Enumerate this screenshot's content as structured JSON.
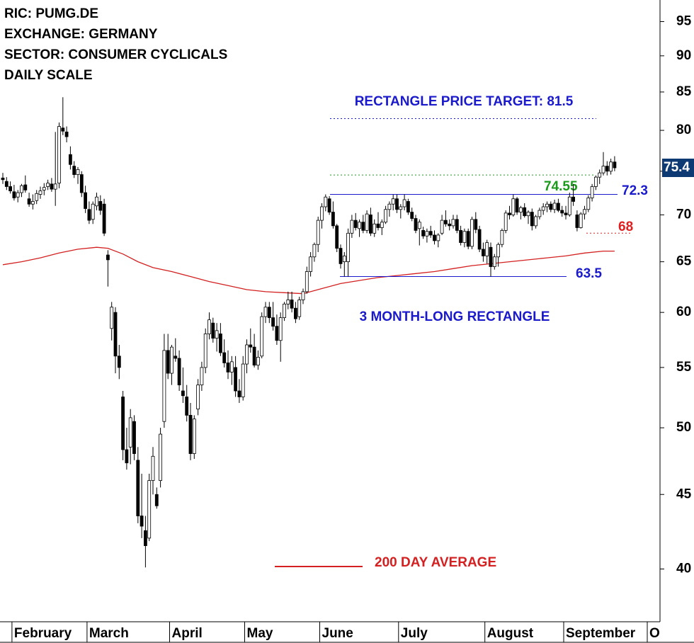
{
  "chart_data": {
    "type": "candlestick",
    "header": [
      "RIC: PUMG.DE",
      "EXCHANGE: GERMANY",
      "SECTOR: CONSUMER CYCLICALS",
      "DAILY SCALE"
    ],
    "log_scale": true,
    "ylim": [
      36.8,
      98.3
    ],
    "yticks": [
      40,
      45,
      50,
      55,
      60,
      65,
      70,
      75,
      80,
      85,
      90,
      95
    ],
    "categories": [
      null,
      null,
      null,
      "February",
      null,
      null,
      null,
      null,
      null,
      null,
      null,
      null,
      null,
      null,
      null,
      null,
      null,
      null,
      null,
      null,
      null,
      null,
      null,
      "March",
      null,
      null,
      null,
      null,
      null,
      null,
      null,
      null,
      null,
      null,
      null,
      null,
      null,
      null,
      null,
      null,
      null,
      null,
      null,
      null,
      null,
      "April",
      null,
      null,
      null,
      null,
      null,
      null,
      null,
      null,
      null,
      null,
      null,
      null,
      null,
      null,
      null,
      null,
      null,
      null,
      null,
      "May",
      null,
      null,
      null,
      null,
      null,
      null,
      null,
      null,
      null,
      null,
      null,
      null,
      null,
      null,
      null,
      null,
      null,
      null,
      null,
      "June",
      null,
      null,
      null,
      null,
      null,
      null,
      null,
      null,
      null,
      null,
      null,
      null,
      null,
      null,
      null,
      null,
      null,
      null,
      null,
      null,
      "July",
      null,
      null,
      null,
      null,
      null,
      null,
      null,
      null,
      null,
      null,
      null,
      null,
      null,
      null,
      null,
      null,
      null,
      null,
      null,
      null,
      null,
      null,
      "August",
      null,
      null,
      null,
      null,
      null,
      null,
      null,
      null,
      null,
      null,
      null,
      null,
      null,
      null,
      null,
      null,
      null,
      null,
      null,
      null,
      "September",
      null,
      null,
      null,
      null,
      null,
      null,
      null,
      null,
      null,
      null,
      null,
      null,
      null
    ],
    "next_month_label": "O",
    "up_color": "#ffffff",
    "down_color": "#000000",
    "ohlc": [
      [
        74.2,
        74.8,
        73.5,
        74.0
      ],
      [
        73.8,
        74.3,
        72.8,
        73.2
      ],
      [
        73.2,
        73.8,
        72.4,
        72.7
      ],
      [
        72.6,
        73.4,
        71.6,
        71.9
      ],
      [
        72,
        72.8,
        71.4,
        72.5
      ],
      [
        72.5,
        73.5,
        72,
        73.3
      ],
      [
        73.4,
        74.5,
        72.5,
        72.8
      ],
      [
        71.8,
        72.5,
        70.9,
        71.2
      ],
      [
        71.2,
        72.3,
        70.6,
        71.5
      ],
      [
        71.6,
        72.8,
        71.2,
        72.4
      ],
      [
        72.3,
        73.2,
        71.8,
        72.7
      ],
      [
        72.8,
        73.6,
        72.2,
        73.1
      ],
      [
        73.2,
        74,
        72.8,
        73.6
      ],
      [
        73.5,
        74.2,
        72.6,
        72.9
      ],
      [
        72.9,
        79.8,
        71,
        73.5
      ],
      [
        73.6,
        81,
        73,
        80.5
      ],
      [
        80.3,
        84.3,
        79.4,
        79.9
      ],
      [
        79.8,
        80.5,
        78.5,
        79.2
      ],
      [
        77,
        78,
        75.2,
        75.8
      ],
      [
        75.6,
        76.2,
        74.2,
        74.6
      ],
      [
        74.6,
        75.5,
        73.5,
        75.2
      ],
      [
        74.6,
        75,
        72,
        72.5
      ],
      [
        72.5,
        73.3,
        70.2,
        70.7
      ],
      [
        70.6,
        71.5,
        69,
        69.4
      ],
      [
        69.5,
        71.5,
        69,
        71.2
      ],
      [
        71,
        72.5,
        70.5,
        72
      ],
      [
        71.5,
        72.2,
        70,
        70.5
      ],
      [
        71.2,
        71.8,
        67.7,
        68
      ],
      [
        65.7,
        66.2,
        62.5,
        65.2
      ],
      [
        58.5,
        61,
        57.4,
        60.5
      ],
      [
        60,
        60.5,
        54.5,
        56
      ],
      [
        56,
        57,
        54,
        55
      ],
      [
        52.5,
        53,
        47.5,
        48.3
      ],
      [
        48.3,
        50,
        46.8,
        47.3
      ],
      [
        48.5,
        51.5,
        47.2,
        50.8
      ],
      [
        50.5,
        51,
        47.5,
        48
      ],
      [
        47.5,
        48.5,
        43,
        43.5
      ],
      [
        43.5,
        46.5,
        42,
        42.8
      ],
      [
        42.5,
        43.5,
        40.1,
        41.5
      ],
      [
        42,
        46.5,
        41.8,
        46
      ],
      [
        46,
        48.5,
        45,
        47.8
      ],
      [
        45,
        45.5,
        44,
        44.2
      ],
      [
        46,
        50,
        45.5,
        49.5
      ],
      [
        50.5,
        58,
        50,
        56.5
      ],
      [
        56.5,
        58,
        54,
        54.5
      ],
      [
        54.5,
        57,
        53.5,
        56.8
      ],
      [
        56,
        57.6,
        55.5,
        55.8
      ],
      [
        55.8,
        56.5,
        53,
        53.5
      ],
      [
        53,
        55,
        52,
        52.6
      ],
      [
        52.5,
        53.5,
        50.5,
        51
      ],
      [
        51,
        52,
        47.5,
        48
      ],
      [
        48,
        51,
        47.6,
        50.7
      ],
      [
        51.5,
        54,
        51,
        53.5
      ],
      [
        53.5,
        55.5,
        53,
        55
      ],
      [
        55,
        58.5,
        54.5,
        58
      ],
      [
        58,
        60,
        57.5,
        59.3
      ],
      [
        59,
        59.5,
        57.2,
        57.6
      ],
      [
        57.6,
        59,
        56.4,
        58.3
      ],
      [
        58,
        59,
        56,
        56.3
      ],
      [
        56.3,
        57.5,
        55,
        55.4
      ],
      [
        55.4,
        56.5,
        54,
        54.6
      ],
      [
        54.6,
        56,
        53.5,
        55.5
      ],
      [
        55,
        56,
        52.5,
        53
      ],
      [
        53,
        54,
        52,
        52.5
      ],
      [
        52.5,
        56,
        52.2,
        55.3
      ],
      [
        55.3,
        57.5,
        54.5,
        57
      ],
      [
        57,
        58.5,
        56.3,
        56.8
      ],
      [
        56.8,
        58,
        55,
        55.2
      ],
      [
        55.2,
        56.5,
        54.8,
        55.9
      ],
      [
        56,
        60,
        55.8,
        59.6
      ],
      [
        59.6,
        61,
        59,
        60.5
      ],
      [
        60.5,
        61,
        59,
        59.5
      ],
      [
        59.5,
        61,
        58.3,
        58.7
      ],
      [
        58.7,
        59.8,
        57,
        57.4
      ],
      [
        57.4,
        60,
        55.5,
        59.5
      ],
      [
        59.5,
        61,
        59.2,
        60.8
      ],
      [
        60.8,
        62,
        60.3,
        61.2
      ],
      [
        61.2,
        62,
        60,
        60.4
      ],
      [
        60.4,
        61,
        59,
        59.4
      ],
      [
        59.6,
        61.5,
        59.3,
        61.2
      ],
      [
        61.2,
        62.3,
        60.8,
        62
      ],
      [
        62,
        64.5,
        61.8,
        64
      ],
      [
        64,
        66,
        63.5,
        65.5
      ],
      [
        65.5,
        67,
        65,
        66.8
      ],
      [
        66.8,
        69.8,
        66,
        69.4
      ],
      [
        69.4,
        71.3,
        68.5,
        70.9
      ],
      [
        70.9,
        72.3,
        70.4,
        72
      ],
      [
        71.8,
        72.1,
        70,
        70.3
      ],
      [
        70.3,
        71.5,
        68.5,
        68.8
      ],
      [
        68.8,
        69,
        66,
        66.4
      ],
      [
        66.4,
        66.8,
        64.3,
        64.8
      ],
      [
        65,
        66,
        63.5,
        65.6
      ],
      [
        65,
        68.5,
        63.5,
        68
      ],
      [
        68,
        70,
        67.5,
        69.4
      ],
      [
        69.4,
        70.2,
        68.3,
        68.6
      ],
      [
        68.5,
        69.5,
        67.6,
        69.2
      ],
      [
        69.2,
        70,
        68,
        68.3
      ],
      [
        68.3,
        70.5,
        68,
        70.1
      ],
      [
        70,
        70.8,
        67.7,
        68
      ],
      [
        68,
        69.5,
        67.6,
        69
      ],
      [
        69,
        70.3,
        68.3,
        68.6
      ],
      [
        68.6,
        69.5,
        67.8,
        69.2
      ],
      [
        69.2,
        71,
        69,
        70.6
      ],
      [
        70.6,
        71.5,
        69.8,
        71.2
      ],
      [
        71.2,
        72.3,
        70.5,
        71.8
      ],
      [
        71.8,
        72.3,
        70.2,
        70.6
      ],
      [
        70.6,
        71.2,
        69.6,
        70.9
      ],
      [
        70.9,
        72.3,
        70.5,
        71.7
      ],
      [
        71.5,
        71.8,
        70,
        70.3
      ],
      [
        70.3,
        70.8,
        69.3,
        69.6
      ],
      [
        69.6,
        70,
        68,
        68.3
      ],
      [
        68.5,
        69.5,
        66.7,
        69.2
      ],
      [
        68.3,
        68.7,
        67.4,
        67.7
      ],
      [
        67.7,
        68.5,
        67,
        68.2
      ],
      [
        68.2,
        68.8,
        67.5,
        67.8
      ],
      [
        67.8,
        68.3,
        66.8,
        67.2
      ],
      [
        67.2,
        68,
        66.5,
        67.8
      ],
      [
        68,
        70,
        67.8,
        69.4
      ],
      [
        69.4,
        70.5,
        68.7,
        69
      ],
      [
        69,
        69.5,
        68.3,
        68.8
      ],
      [
        68.8,
        70,
        68.5,
        69.5
      ],
      [
        69.5,
        70,
        68,
        68.3
      ],
      [
        68.3,
        68.8,
        66.7,
        67
      ],
      [
        67,
        68.5,
        66.5,
        68.2
      ],
      [
        68.2,
        68.5,
        66.3,
        66.6
      ],
      [
        66.6,
        69.8,
        66.3,
        69.5
      ],
      [
        69.5,
        70.3,
        68,
        68.4
      ],
      [
        68.4,
        68.8,
        66,
        66.3
      ],
      [
        66.3,
        67,
        65,
        65.6
      ],
      [
        65.6,
        67.3,
        64.8,
        67
      ],
      [
        66.5,
        67,
        63.5,
        64.5
      ],
      [
        64.5,
        65.8,
        64.2,
        65.5
      ],
      [
        65.5,
        67,
        64.5,
        66.8
      ],
      [
        66.8,
        68.5,
        66.5,
        68.3
      ],
      [
        68.3,
        70.5,
        68,
        70.2
      ],
      [
        70.2,
        71,
        69.5,
        70
      ],
      [
        70,
        72.3,
        69.8,
        71.8
      ],
      [
        71.8,
        72,
        70,
        70.3
      ],
      [
        70.3,
        71,
        69.5,
        70.8
      ],
      [
        70.8,
        71.3,
        69.7,
        69.9
      ],
      [
        69.9,
        70.5,
        69,
        70.3
      ],
      [
        70.3,
        70.7,
        68.3,
        68.8
      ],
      [
        68.8,
        70,
        68.5,
        69.8
      ],
      [
        69.8,
        70.8,
        69.5,
        70.5
      ],
      [
        70.5,
        71.3,
        70,
        70.9
      ],
      [
        70.9,
        71.5,
        70.3,
        71.2
      ],
      [
        71.2,
        71.5,
        70.3,
        70.6
      ],
      [
        70.6,
        71.7,
        70.2,
        71.3
      ],
      [
        71.3,
        71.8,
        70.3,
        70.5
      ],
      [
        70.5,
        71,
        69.8,
        70.2
      ],
      [
        70.2,
        71,
        69.5,
        70
      ],
      [
        70,
        72.5,
        69.8,
        72
      ],
      [
        72,
        73.5,
        71,
        71.5
      ],
      [
        70,
        70.5,
        68.2,
        68.6
      ],
      [
        68.6,
        70.3,
        68.5,
        70.1
      ],
      [
        70.1,
        71,
        69.5,
        70.6
      ],
      [
        70.6,
        72.2,
        70.3,
        71.9
      ],
      [
        71.9,
        73.5,
        71.5,
        73.2
      ],
      [
        73.2,
        74.5,
        72.8,
        74.3
      ],
      [
        74.3,
        75.2,
        73.5,
        74.8
      ],
      [
        74.8,
        77.3,
        74.5,
        75.6
      ],
      [
        75.6,
        76.2,
        74.5,
        75
      ],
      [
        75,
        76.5,
        74.6,
        76.1
      ],
      [
        76.1,
        76.8,
        75,
        75.4
      ]
    ],
    "ma_200": {
      "name": "200 DAY AVERAGE",
      "color": "#d42020",
      "x": [
        0,
        5,
        10,
        15,
        20,
        25,
        28,
        32,
        36,
        40,
        45,
        50,
        55,
        60,
        65,
        70,
        75,
        80,
        85,
        90,
        95,
        100,
        105,
        110,
        115,
        120,
        125,
        130,
        135,
        140,
        145,
        150,
        155,
        160,
        163
      ],
      "values": [
        64.7,
        65.0,
        65.4,
        65.9,
        66.3,
        66.5,
        66.4,
        65.8,
        65.0,
        64.4,
        64.0,
        63.5,
        63.0,
        62.6,
        62.2,
        62.0,
        61.9,
        61.8,
        62.3,
        62.8,
        63.1,
        63.4,
        63.6,
        63.8,
        64.0,
        64.3,
        64.6,
        64.8,
        65.0,
        65.2,
        65.4,
        65.6,
        65.9,
        66.1,
        66.1
      ]
    },
    "levels": [
      {
        "label": "RECTANGLE PRICE TARGET: 81.5",
        "value": 81.5,
        "color": "#1a1acc",
        "style": "dotted"
      },
      {
        "value": 74.55,
        "color": "#1a9a1a",
        "style": "dotted"
      },
      {
        "value": 72.3,
        "color": "#1a1acc",
        "style": "solid"
      },
      {
        "value": 68,
        "color": "#e02020",
        "style": "dotted"
      },
      {
        "value": 63.5,
        "color": "#1a1acc",
        "style": "solid"
      }
    ],
    "annotation": "3 MONTH-LONG RECTANGLE",
    "badge_color": "#0d3a73"
  }
}
